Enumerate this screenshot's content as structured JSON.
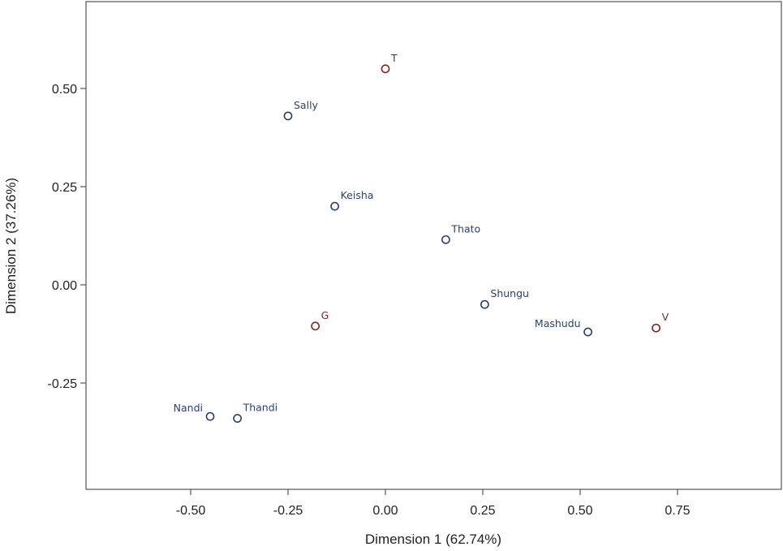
{
  "chart_data": {
    "type": "scatter",
    "title": "",
    "xlabel": "Dimension 1 (62.74%)",
    "ylabel": "Dimension 2 (37.26%)",
    "xlim": [
      -0.75,
      1.0
    ],
    "ylim": [
      -0.52,
      0.7
    ],
    "xticks": [
      -0.5,
      -0.25,
      0.0,
      0.25,
      0.5,
      0.75
    ],
    "xtick_labels": [
      "-0.50",
      "-0.25",
      "0.00",
      "0.25",
      "0.50",
      "0.75"
    ],
    "yticks": [
      -0.25,
      0.0,
      0.25,
      0.5
    ],
    "ytick_labels": [
      "-0.25",
      "0.00",
      "0.25",
      "0.50"
    ],
    "grid": false,
    "colors": {
      "persons": "#2e3f6e",
      "categories": "#7a2a2a"
    },
    "series": [
      {
        "marker_color": "#2e3f6e",
        "points": [
          {
            "label": "Sally",
            "x": -0.25,
            "y": 0.43,
            "label_side": "right"
          },
          {
            "label": "Keisha",
            "x": -0.13,
            "y": 0.2,
            "label_side": "right"
          },
          {
            "label": "Thato",
            "x": 0.155,
            "y": 0.115,
            "label_side": "right"
          },
          {
            "label": "Shungu",
            "x": 0.255,
            "y": -0.05,
            "label_side": "right"
          },
          {
            "label": "Mashudu",
            "x": 0.52,
            "y": -0.12,
            "label_side": "left"
          },
          {
            "label": "Nandi",
            "x": -0.45,
            "y": -0.335,
            "label_side": "left"
          },
          {
            "label": "Thandi",
            "x": -0.38,
            "y": -0.34,
            "label_side": "right"
          }
        ]
      },
      {
        "marker_color": "#7a2a2a",
        "points": [
          {
            "label": "T",
            "x": 0.0,
            "y": 0.55,
            "label_side": "right"
          },
          {
            "label": "G",
            "x": -0.18,
            "y": -0.105,
            "label_side": "right"
          },
          {
            "label": "V",
            "x": 0.695,
            "y": -0.11,
            "label_side": "right"
          }
        ]
      }
    ]
  }
}
